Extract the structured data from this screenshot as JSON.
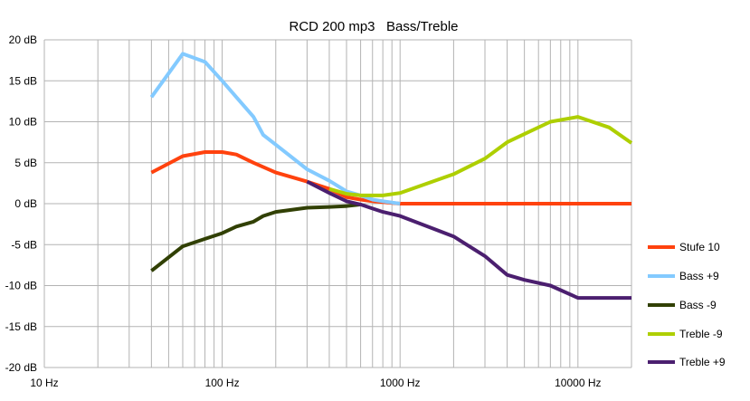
{
  "chart_data": {
    "type": "line",
    "title": "RCD 200 mp3   Bass/Treble",
    "xlabel": "",
    "ylabel": "",
    "x_scale": "log",
    "xlim": [
      10,
      20000
    ],
    "ylim": [
      -20,
      20
    ],
    "grid": true,
    "legend_position": "right",
    "x_ticks": [
      10,
      100,
      1000,
      10000
    ],
    "x_tick_labels": [
      "10 Hz",
      "100 Hz",
      "1000 Hz",
      "10000 Hz"
    ],
    "y_ticks": [
      20,
      15,
      10,
      5,
      0,
      -5,
      -10,
      -15,
      -20
    ],
    "y_tick_labels": [
      "20 dB",
      "15 dB",
      "10 dB",
      "5 dB",
      "0 dB",
      "-5 dB",
      "-10 dB",
      "-15 dB",
      "-20 dB"
    ],
    "series": [
      {
        "name": "Stufe 10",
        "color": "#ff420e",
        "x": [
          40,
          60,
          80,
          100,
          120,
          150,
          200,
          300,
          400,
          500,
          600,
          700,
          800,
          1000,
          2000,
          5000,
          10000,
          20000
        ],
        "y": [
          3.8,
          5.8,
          6.3,
          6.3,
          6.0,
          5.0,
          3.8,
          2.7,
          1.8,
          0.8,
          0.5,
          0.3,
          0.2,
          0.0,
          0.0,
          0.0,
          0.0,
          0.0
        ]
      },
      {
        "name": "Bass +9",
        "color": "#83caff",
        "x": [
          40,
          60,
          80,
          100,
          120,
          150,
          170,
          200,
          300,
          400,
          500,
          600,
          700,
          800,
          1000
        ],
        "y": [
          13.0,
          18.3,
          17.3,
          15.0,
          13.0,
          10.6,
          8.4,
          7.2,
          4.2,
          2.8,
          1.5,
          1.0,
          0.5,
          0.3,
          0.0
        ]
      },
      {
        "name": "Bass -9",
        "color": "#314004",
        "x": [
          40,
          60,
          80,
          100,
          120,
          150,
          170,
          200,
          300,
          400,
          500,
          600
        ],
        "y": [
          -8.2,
          -5.2,
          -4.3,
          -3.6,
          -2.8,
          -2.2,
          -1.5,
          -1.0,
          -0.5,
          -0.4,
          -0.3,
          -0.1
        ]
      },
      {
        "name": "Treble -9",
        "color": "#aecf00",
        "x": [
          400,
          500,
          600,
          700,
          800,
          1000,
          2000,
          3000,
          4000,
          5000,
          7000,
          10000,
          15000,
          20000
        ],
        "y": [
          1.8,
          1.2,
          1.0,
          1.0,
          1.0,
          1.3,
          3.6,
          5.5,
          7.5,
          8.5,
          10.0,
          10.6,
          9.3,
          7.4
        ]
      },
      {
        "name": "Treble +9",
        "color": "#4b1f6f",
        "x": [
          300,
          400,
          500,
          600,
          700,
          800,
          1000,
          2000,
          3000,
          4000,
          5000,
          7000,
          10000,
          15000,
          20000
        ],
        "y": [
          2.7,
          1.3,
          0.3,
          -0.1,
          -0.6,
          -1.0,
          -1.5,
          -4.0,
          -6.4,
          -8.7,
          -9.3,
          -10.0,
          -11.5,
          -11.5,
          -11.5
        ]
      }
    ]
  }
}
